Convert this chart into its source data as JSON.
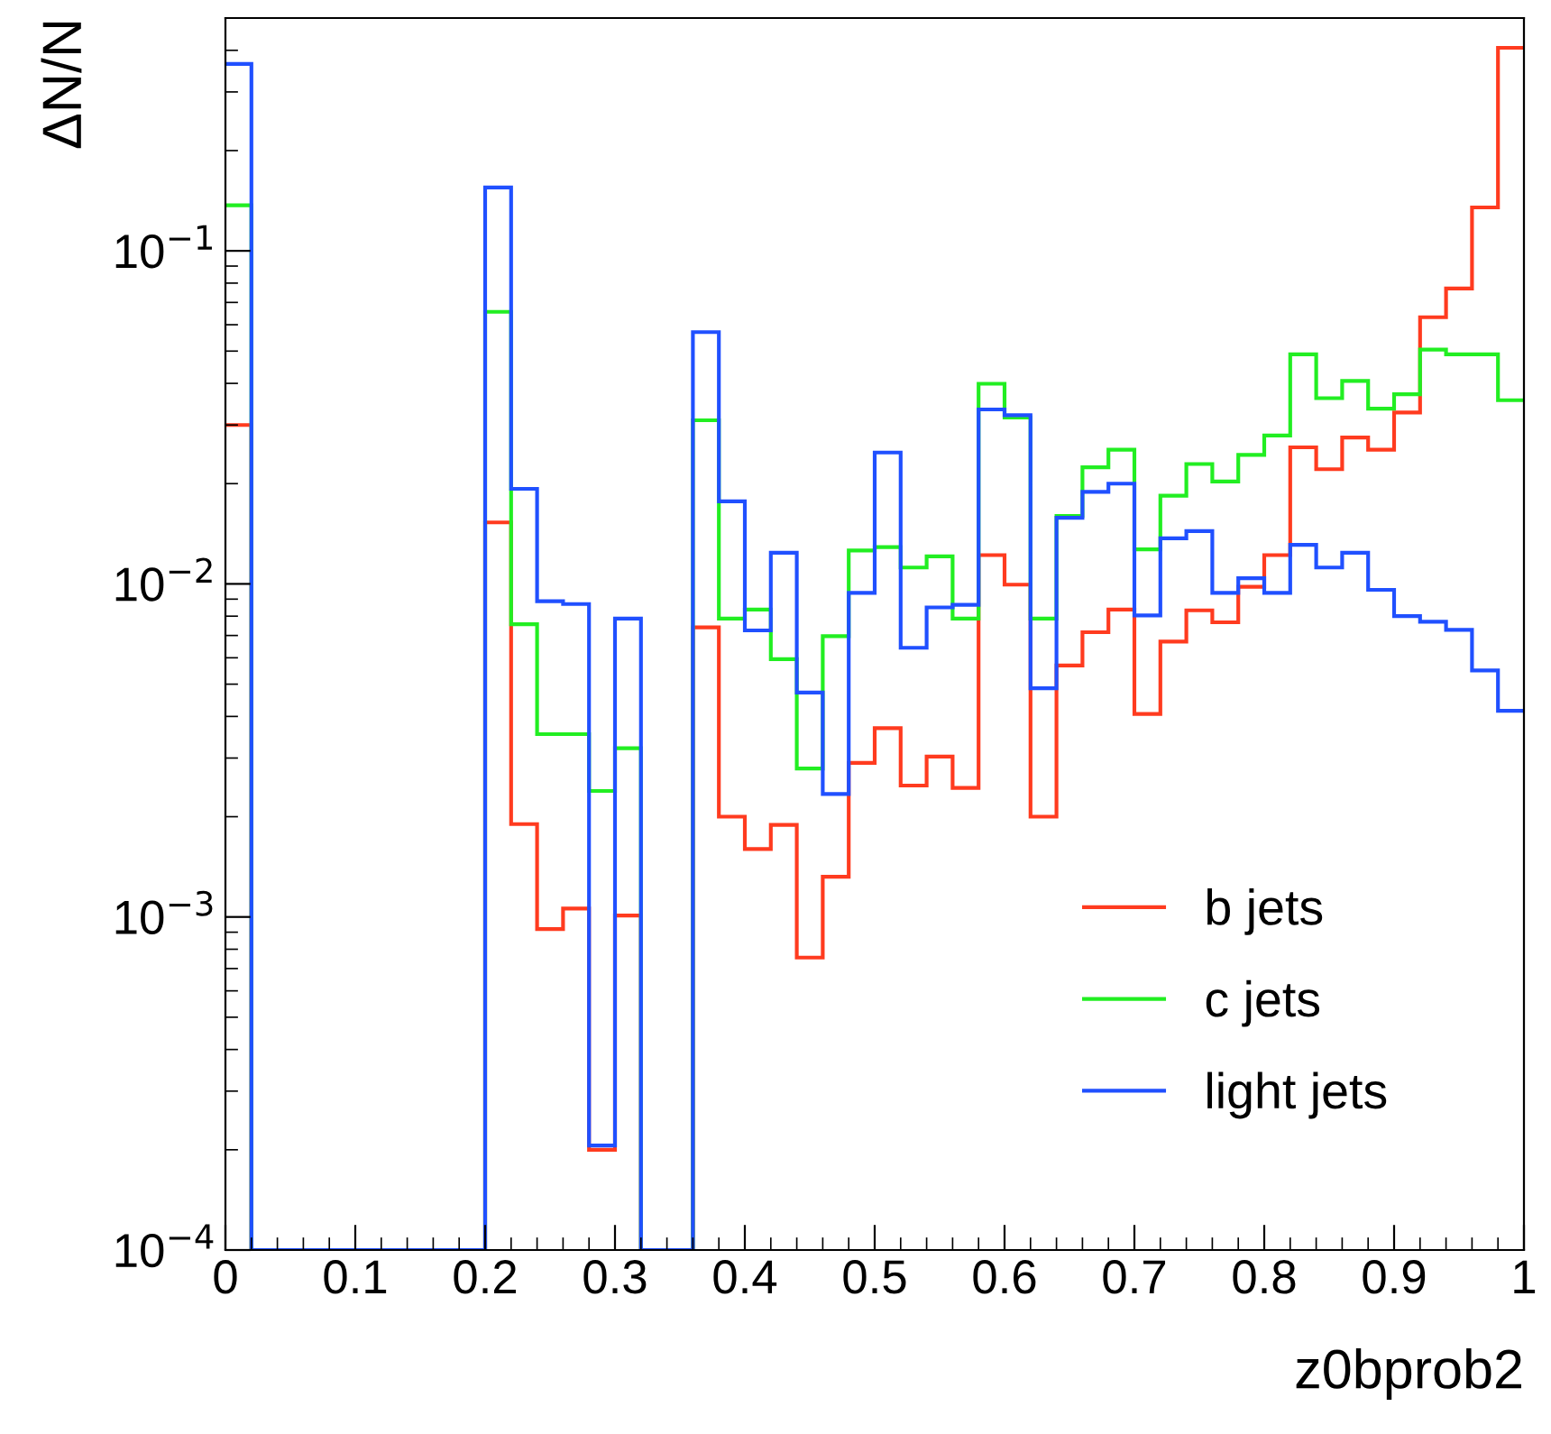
{
  "chart_data": {
    "type": "histogram",
    "xlabel": "z0bprob2",
    "ylabel": "ΔN/N",
    "bins": [
      0,
      0.02,
      0.04,
      0.06,
      0.08,
      0.1,
      0.12,
      0.14,
      0.16,
      0.18,
      0.2,
      0.22,
      0.24,
      0.26,
      0.28,
      0.3,
      0.32,
      0.34,
      0.36,
      0.38,
      0.4,
      0.42,
      0.44,
      0.46,
      0.48,
      0.5,
      0.52,
      0.54,
      0.56,
      0.58,
      0.6,
      0.62,
      0.64,
      0.66,
      0.68,
      0.7,
      0.72,
      0.74,
      0.76,
      0.78,
      0.8,
      0.82,
      0.84,
      0.86,
      0.88,
      0.9,
      0.92,
      0.94,
      0.96,
      0.98,
      1
    ],
    "series": [
      {
        "name": "b jets",
        "color": "#ff3b1f",
        "values": [
          0.03,
          null,
          null,
          null,
          null,
          null,
          null,
          null,
          null,
          null,
          0.0153,
          0.0019,
          0.00092,
          0.00106,
          0.0002,
          0.00101,
          null,
          null,
          0.0074,
          0.002,
          0.0016,
          0.00189,
          0.000755,
          0.00132,
          0.0029,
          0.00369,
          0.00248,
          0.00303,
          0.00244,
          0.0122,
          0.00995,
          0.002,
          0.00569,
          0.00716,
          0.00837,
          0.00407,
          0.00671,
          0.00833,
          0.00767,
          0.0098,
          0.0122,
          0.0257,
          0.0221,
          0.0275,
          0.0253,
          0.0327,
          0.0632,
          0.0771,
          0.135,
          0.407
        ]
      },
      {
        "name": "c jets",
        "color": "#22ee22",
        "values": [
          0.137,
          null,
          null,
          null,
          null,
          null,
          null,
          null,
          null,
          null,
          0.0656,
          0.00757,
          0.00354,
          0.00354,
          0.00239,
          0.00321,
          null,
          null,
          0.031,
          0.00787,
          0.00837,
          0.00594,
          0.00279,
          0.00697,
          0.0126,
          0.0129,
          0.0112,
          0.0121,
          0.00787,
          0.0399,
          0.0316,
          0.00787,
          0.016,
          0.0224,
          0.0253,
          0.0127,
          0.0184,
          0.0229,
          0.0203,
          0.0244,
          0.0279,
          0.0489,
          0.0361,
          0.0407,
          0.0336,
          0.0371,
          0.0505,
          0.0489,
          0.0489,
          0.0356
        ]
      },
      {
        "name": "light jets",
        "color": "#2050ff",
        "values": [
          0.364,
          null,
          null,
          null,
          null,
          null,
          null,
          null,
          null,
          null,
          0.155,
          0.0193,
          0.00887,
          0.0087,
          0.000206,
          0.00787,
          null,
          null,
          0.057,
          0.0177,
          0.00725,
          0.0124,
          0.00472,
          0.00234,
          0.0094,
          0.0248,
          0.00643,
          0.0085,
          0.00865,
          0.0334,
          0.0321,
          0.00486,
          0.0158,
          0.0189,
          0.02,
          0.00804,
          0.0137,
          0.0144,
          0.0094,
          0.0104,
          0.0094,
          0.0131,
          0.0112,
          0.0124,
          0.0096,
          0.008,
          0.0077,
          0.00728,
          0.0055,
          0.00416
        ]
      }
    ],
    "log": "y",
    "xlim": [
      0,
      1
    ],
    "xticks": [
      0,
      0.1,
      0.2,
      0.3,
      0.4,
      0.5,
      0.6,
      0.7,
      0.8,
      0.9,
      1
    ],
    "ylim": [
      0.0001,
      0.5
    ],
    "yticks": [
      {
        "value": 0.0001,
        "label": "10$^{−4}$"
      },
      {
        "value": 0.001,
        "label": "10$^{−3}$"
      },
      {
        "value": 0.01,
        "label": "10$^{−2}$"
      },
      {
        "value": 0.1,
        "label": "10$^{−1}$"
      }
    ],
    "grid": false,
    "legend": "bottom right"
  }
}
